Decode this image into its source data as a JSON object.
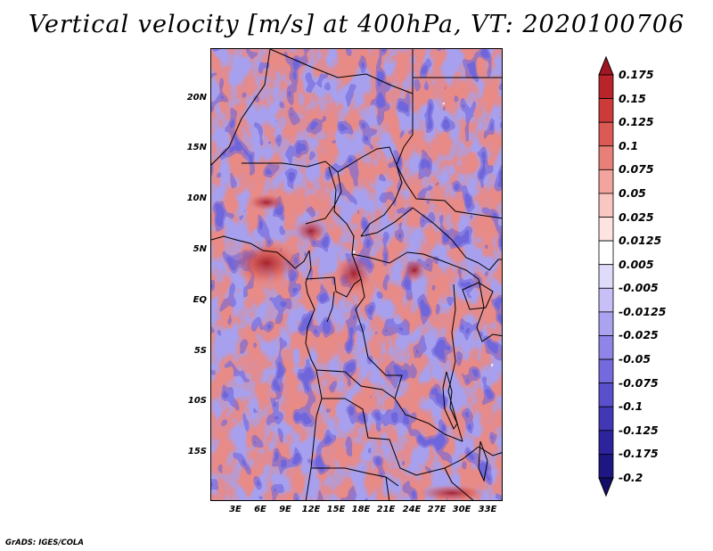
{
  "title": "Vertical velocity [m/s] at 400hPa, VT: 2020100706",
  "credit": "GrADS: IGES/COLA",
  "lat_labels": [
    "20N",
    "15N",
    "10N",
    "5N",
    "EQ",
    "5S",
    "10S",
    "15S"
  ],
  "lon_labels": [
    "3E",
    "6E",
    "9E",
    "12E",
    "15E",
    "18E",
    "21E",
    "24E",
    "27E",
    "30E",
    "33E"
  ],
  "colorbar": {
    "labels": [
      "0.175",
      "0.15",
      "0.125",
      "0.1",
      "0.075",
      "0.05",
      "0.025",
      "0.0125",
      "0.005",
      "-0.005",
      "-0.0125",
      "-0.025",
      "-0.05",
      "-0.075",
      "-0.1",
      "-0.125",
      "-0.175",
      "-0.2"
    ],
    "colors": [
      "#a01622",
      "#b8242a",
      "#cc3a3a",
      "#dc5a55",
      "#e8807a",
      "#f2a49e",
      "#f9c6c2",
      "#fde4e1",
      "#ffffff",
      "#dfdcfb",
      "#c6c0f6",
      "#aaa3f0",
      "#8f85e8",
      "#746add",
      "#5b50cc",
      "#4238b6",
      "#2d239c",
      "#1e1782",
      "#150e68"
    ]
  },
  "colors": {
    "line": "#000000",
    "background": "#ffffff"
  }
}
